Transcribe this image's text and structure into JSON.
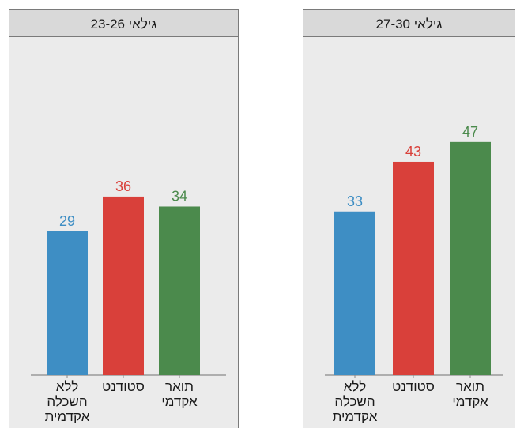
{
  "chart_data": [
    {
      "type": "bar",
      "title": "גילאי 23-26",
      "categories": [
        [
          "ללא",
          "השכלה",
          "אקדמית"
        ],
        [
          "סטודנט"
        ],
        [
          "תואר",
          "אקדמי"
        ]
      ],
      "values": [
        29,
        36,
        34
      ],
      "colors": [
        "#3e8ec4",
        "#d9403a",
        "#4b8a4c"
      ],
      "ylim": [
        0,
        50
      ],
      "grid": false,
      "legend": "none"
    },
    {
      "type": "bar",
      "title": "גילאי 27-30",
      "categories": [
        [
          "ללא",
          "השכלה",
          "אקדמית"
        ],
        [
          "סטודנט"
        ],
        [
          "תואר",
          "אקדמי"
        ]
      ],
      "values": [
        33,
        43,
        47
      ],
      "colors": [
        "#3e8ec4",
        "#d9403a",
        "#4b8a4c"
      ],
      "ylim": [
        0,
        50
      ],
      "grid": false,
      "legend": "none"
    }
  ]
}
